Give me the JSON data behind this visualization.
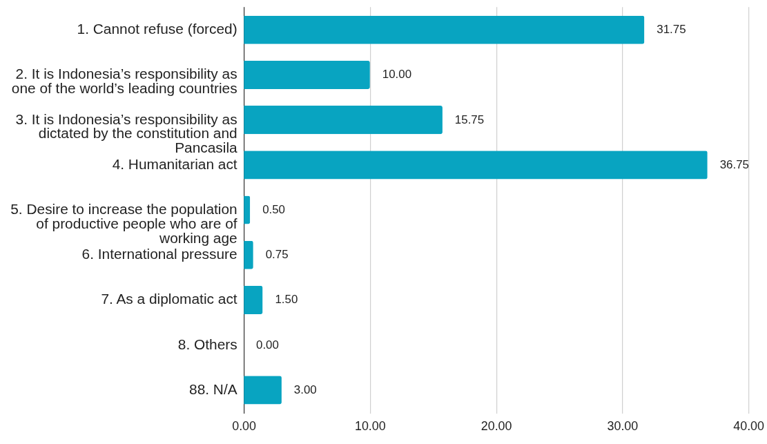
{
  "chart_data": {
    "type": "bar",
    "orientation": "horizontal",
    "categories": [
      "1. Cannot refuse (forced)",
      "2. It is Indonesia’s responsibility as one of the world’s leading countries",
      "3. It is Indonesia’s responsibility as dictated by the constitution and Pancasila",
      "4. Humanitarian act",
      "5. Desire to increase the population of productive people who are of working age",
      "6. International pressure",
      "7. As a diplomatic act",
      "8. Others",
      "88. N/A"
    ],
    "values": [
      31.75,
      10,
      15.75,
      36.75,
      0.5,
      0.75,
      1.5,
      0,
      3
    ],
    "value_labels": [
      "31.75",
      "10.00",
      "15.75",
      "36.75",
      "0.50",
      "0.75",
      "1.50",
      "0.00",
      "3.00"
    ],
    "color": "#08a4c1",
    "xlim": [
      0,
      40
    ],
    "xticks": [
      {
        "value": 0,
        "label": "0.00"
      },
      {
        "value": 10,
        "label": "10.00"
      },
      {
        "value": 20,
        "label": "20.00"
      },
      {
        "value": 30,
        "label": "30.00"
      },
      {
        "value": 40,
        "label": "40.00"
      }
    ],
    "grid": "x"
  }
}
